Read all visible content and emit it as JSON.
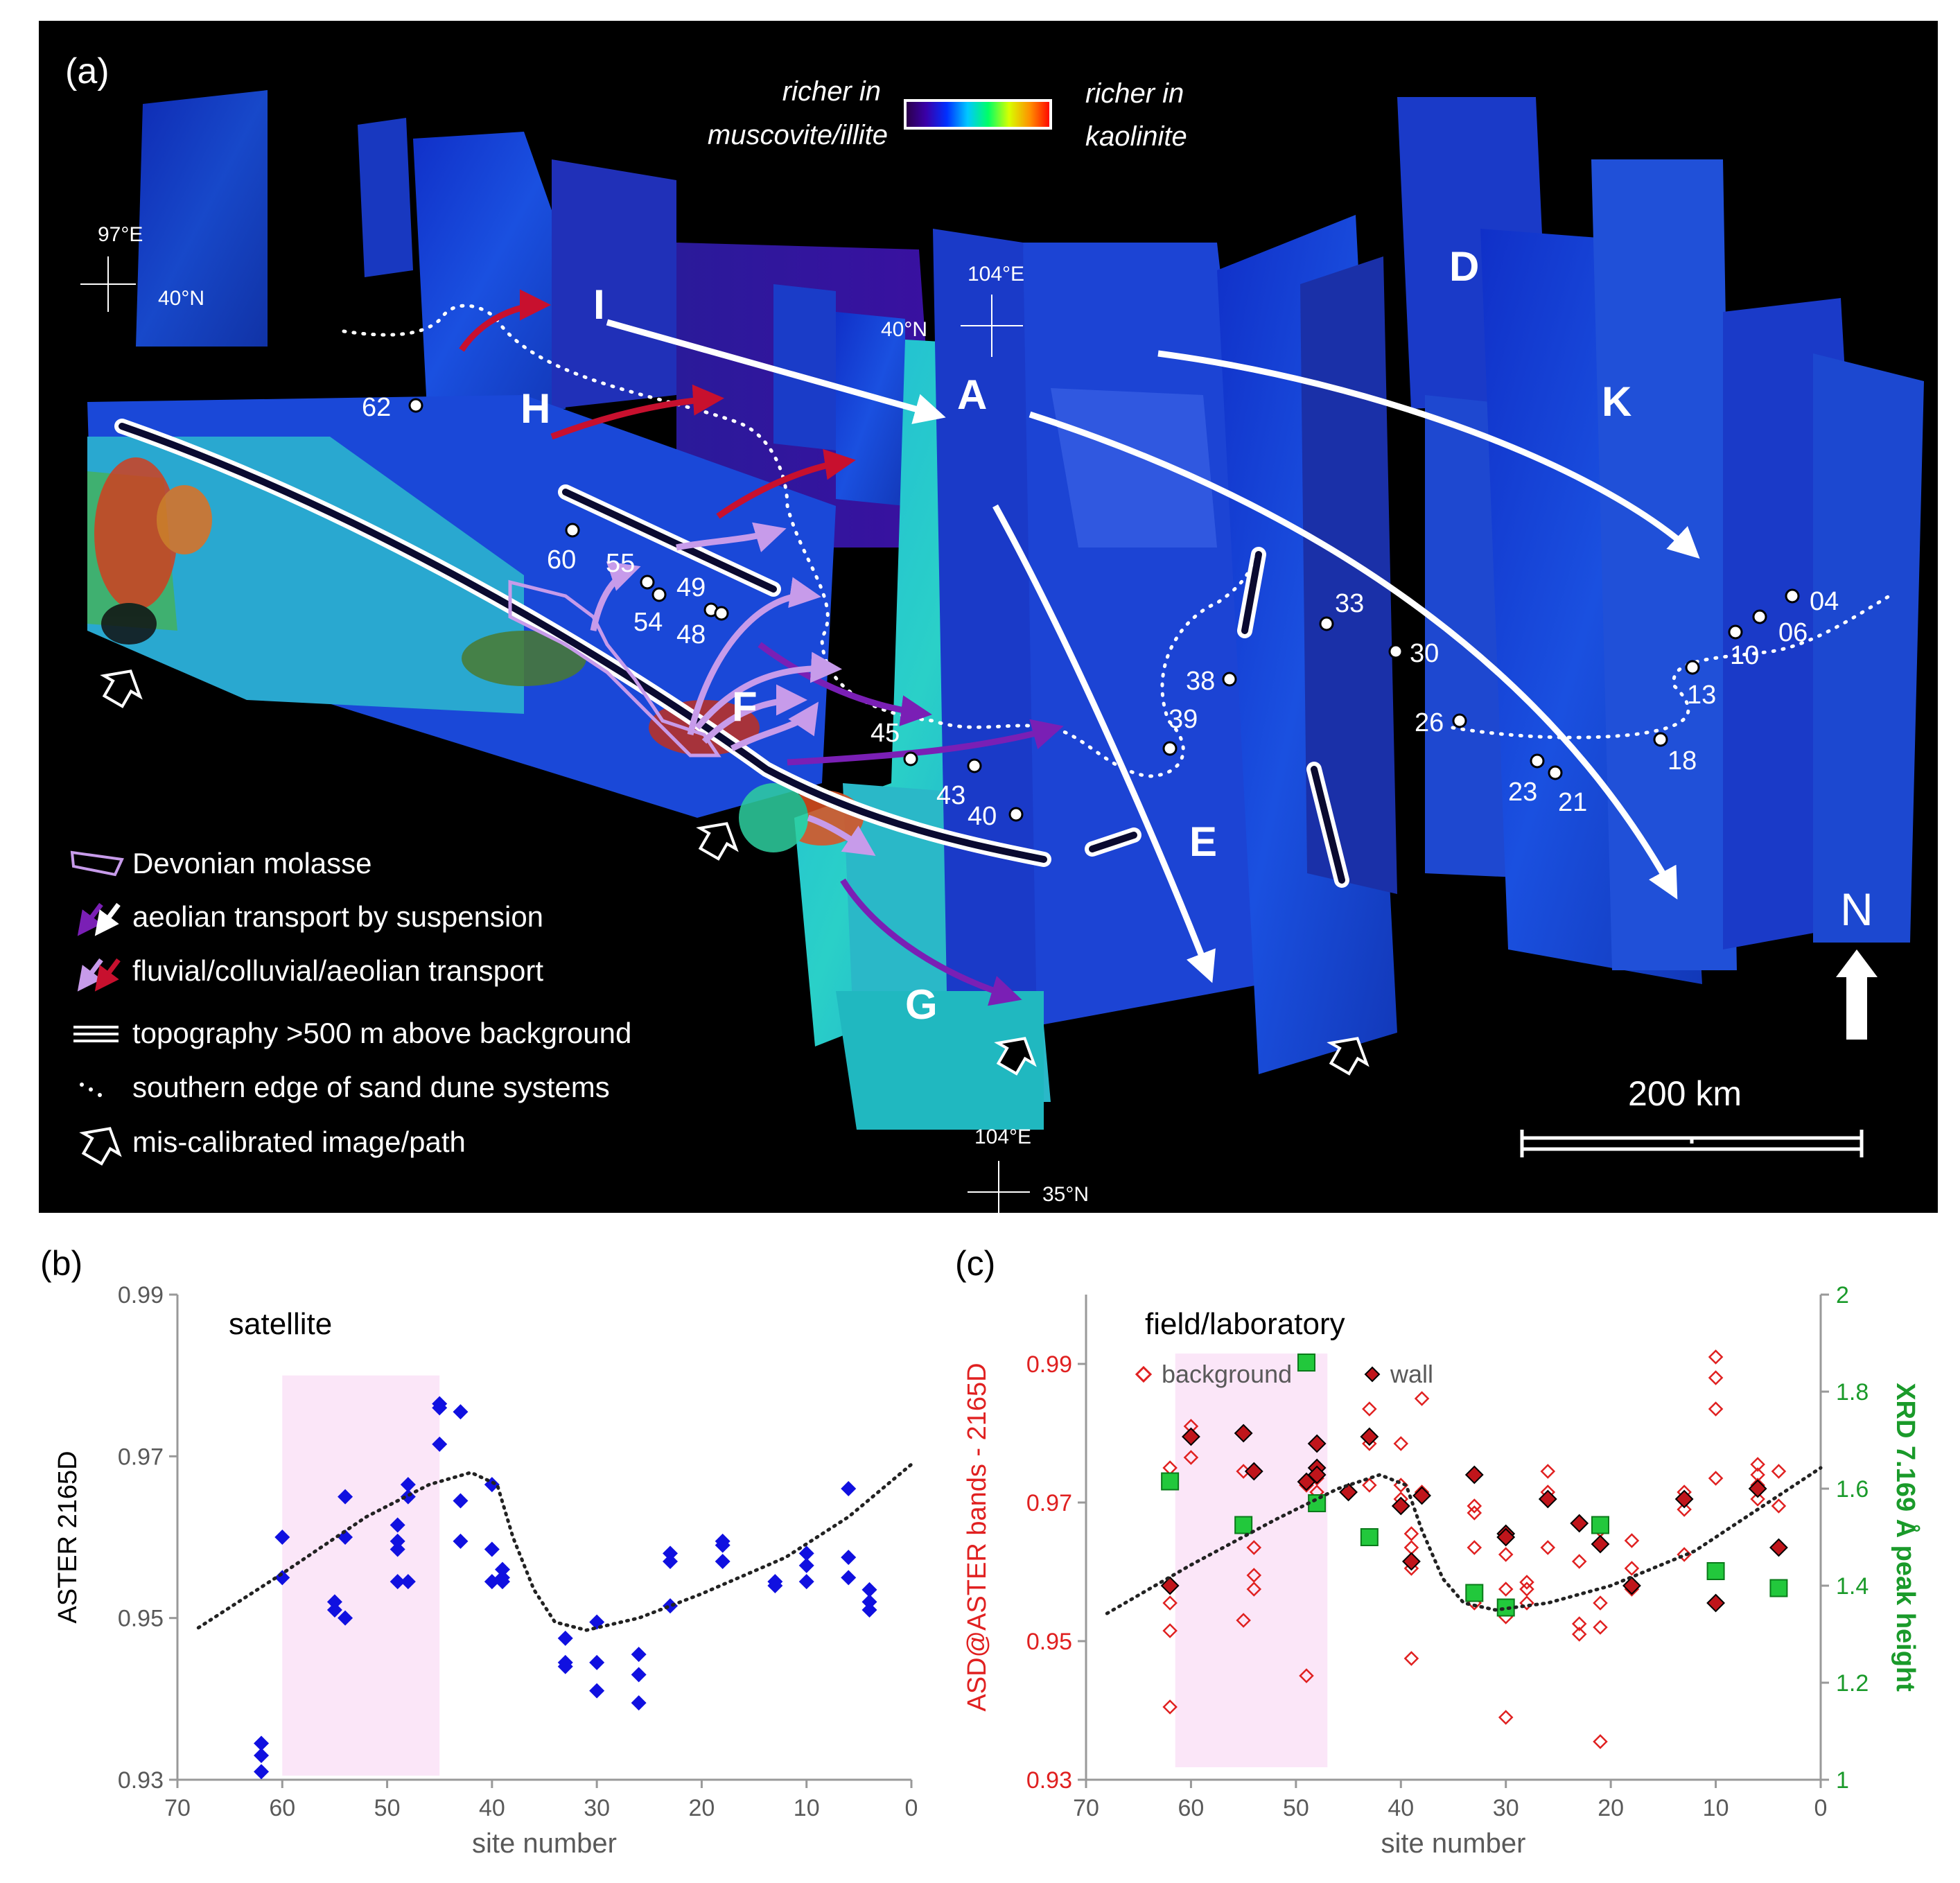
{
  "panel_a": {
    "label": "(a)",
    "colorbar": {
      "left_label_line1": "richer in",
      "left_label_line2": "muscovite/illite",
      "right_label_line1": "richer in",
      "right_label_line2": "kaolinite",
      "gradient": [
        "#2a0044",
        "#3a00a8",
        "#0030ff",
        "#00c8ff",
        "#00ff66",
        "#d8ff00",
        "#ff9000",
        "#ff0000"
      ]
    },
    "coord_marks": [
      {
        "lon": "97°E",
        "lat": "40°N"
      },
      {
        "lon": "104°E",
        "lat": "40°N"
      },
      {
        "lon": "104°E",
        "lat": "35°N"
      }
    ],
    "region_letters": [
      "I",
      "H",
      "A",
      "D",
      "K",
      "F",
      "E",
      "G"
    ],
    "sites": [
      "62",
      "60",
      "55",
      "54",
      "49",
      "48",
      "45",
      "43",
      "40",
      "39",
      "38",
      "33",
      "30",
      "26",
      "23",
      "21",
      "18",
      "13",
      "10",
      "06",
      "04"
    ],
    "legend": [
      {
        "icon": "molasse-polygon-icon",
        "text": "Devonian molasse"
      },
      {
        "icon": "suspension-arrows-icon",
        "text": "aeolian transport by suspension"
      },
      {
        "icon": "fluvial-arrows-icon",
        "text": "fluvial/colluvial/aeolian transport"
      },
      {
        "icon": "topography-lines-icon",
        "text": "topography >500 m above background"
      },
      {
        "icon": "dotted-edge-icon",
        "text": "southern edge of sand dune systems"
      },
      {
        "icon": "outline-arrow-icon",
        "text": "mis-calibrated image/path"
      }
    ],
    "north": "N",
    "scale": "200 km",
    "colors": {
      "background": "#000000",
      "white_arrow": "#ffffff",
      "red_arrow": "#c8102e",
      "purple_arrow": "#7a1fb5",
      "lilac_arrow": "#c79bea"
    }
  },
  "chart_data": [
    {
      "panel": "(b)",
      "type": "scatter",
      "title": "satellite",
      "xlabel": "site number",
      "ylabel": "ASTER 2165D",
      "xlim": [
        70,
        0
      ],
      "ylim": [
        0.93,
        0.99
      ],
      "xticks": [
        "70",
        "60",
        "50",
        "40",
        "30",
        "20",
        "10",
        "0"
      ],
      "yticks": [
        "0.93",
        "0.95",
        "0.97",
        "0.99"
      ],
      "shaded_range": {
        "x": [
          60,
          45
        ],
        "y": [
          0.9305,
          0.98
        ]
      },
      "marker_color": "#1010e0",
      "series": [
        {
          "name": "satellite",
          "points": [
            [
              62,
              0.9345
            ],
            [
              62,
              0.933
            ],
            [
              62,
              0.931
            ],
            [
              60,
              0.96
            ],
            [
              60,
              0.955
            ],
            [
              55,
              0.952
            ],
            [
              55,
              0.951
            ],
            [
              54,
              0.965
            ],
            [
              54,
              0.96
            ],
            [
              54,
              0.95
            ],
            [
              49,
              0.9615
            ],
            [
              49,
              0.9595
            ],
            [
              49,
              0.9585
            ],
            [
              49,
              0.9545
            ],
            [
              48,
              0.9665
            ],
            [
              48,
              0.965
            ],
            [
              48,
              0.9545
            ],
            [
              45,
              0.9765
            ],
            [
              45,
              0.976
            ],
            [
              45,
              0.9715
            ],
            [
              43,
              0.9755
            ],
            [
              43,
              0.9645
            ],
            [
              43,
              0.9595
            ],
            [
              40,
              0.9665
            ],
            [
              40,
              0.9585
            ],
            [
              40,
              0.9545
            ],
            [
              39,
              0.956
            ],
            [
              39,
              0.955
            ],
            [
              39,
              0.9545
            ],
            [
              33,
              0.9475
            ],
            [
              33,
              0.9445
            ],
            [
              33,
              0.944
            ],
            [
              30,
              0.9495
            ],
            [
              30,
              0.9445
            ],
            [
              30,
              0.941
            ],
            [
              26,
              0.9455
            ],
            [
              26,
              0.943
            ],
            [
              26,
              0.9395
            ],
            [
              23,
              0.958
            ],
            [
              23,
              0.957
            ],
            [
              23,
              0.9515
            ],
            [
              18,
              0.9595
            ],
            [
              18,
              0.959
            ],
            [
              18,
              0.957
            ],
            [
              13,
              0.9545
            ],
            [
              13,
              0.954
            ],
            [
              10,
              0.958
            ],
            [
              10,
              0.9565
            ],
            [
              10,
              0.9545
            ],
            [
              6,
              0.966
            ],
            [
              6,
              0.9575
            ],
            [
              6,
              0.955
            ],
            [
              4,
              0.9535
            ],
            [
              4,
              0.952
            ],
            [
              4,
              0.951
            ]
          ]
        },
        {
          "name": "trend",
          "line": [
            [
              68,
              0.9488
            ],
            [
              60,
              0.9555
            ],
            [
              52,
              0.9625
            ],
            [
              46,
              0.9665
            ],
            [
              42,
              0.968
            ],
            [
              39.5,
              0.9665
            ],
            [
              38,
              0.96
            ],
            [
              36,
              0.9535
            ],
            [
              34,
              0.9495
            ],
            [
              31,
              0.9485
            ],
            [
              26,
              0.95
            ],
            [
              20,
              0.953
            ],
            [
              12,
              0.9575
            ],
            [
              6,
              0.9625
            ],
            [
              0,
              0.969
            ]
          ]
        }
      ]
    },
    {
      "panel": "(c)",
      "type": "scatter",
      "title": "field/laboratory",
      "xlabel": "site number",
      "ylabel": "ASD@ASTER bands - 2165D",
      "y2label": "XRD 7.169 Å peak height",
      "xlim": [
        70,
        0
      ],
      "ylim": [
        0.93,
        1.0
      ],
      "y2lim": [
        1,
        2
      ],
      "xticks": [
        "70",
        "60",
        "50",
        "40",
        "30",
        "20",
        "10",
        "0"
      ],
      "yticks": [
        "0.93",
        "0.95",
        "0.97",
        "0.99"
      ],
      "y2ticks": [
        "1",
        "1.2",
        "1.4",
        "1.6",
        "1.8",
        "2"
      ],
      "shaded_range": {
        "x": [
          61.5,
          47
        ],
        "y": [
          0.9318,
          0.9915
        ]
      },
      "legend": [
        "background",
        "wall"
      ],
      "series": [
        {
          "name": "background",
          "marker": "open-diamond",
          "color": "#e02020",
          "points": [
            [
              62,
              0.975
            ],
            [
              62,
              0.9555
            ],
            [
              62,
              0.9515
            ],
            [
              62,
              0.9405
            ],
            [
              60,
              0.981
            ],
            [
              60,
              0.9765
            ],
            [
              55,
              0.9745
            ],
            [
              55,
              0.953
            ],
            [
              54,
              0.9745
            ],
            [
              54,
              0.9635
            ],
            [
              54,
              0.9595
            ],
            [
              54,
              0.9575
            ],
            [
              49,
              0.9725
            ],
            [
              49,
              0.945
            ],
            [
              48,
              0.9735
            ],
            [
              48,
              0.9715
            ],
            [
              43,
              0.9835
            ],
            [
              43,
              0.9785
            ],
            [
              43,
              0.9725
            ],
            [
              40,
              0.9785
            ],
            [
              40,
              0.9725
            ],
            [
              40,
              0.9705
            ],
            [
              39,
              0.9655
            ],
            [
              39,
              0.9635
            ],
            [
              39,
              0.9605
            ],
            [
              39,
              0.9475
            ],
            [
              38,
              0.985
            ],
            [
              38,
              0.9715
            ],
            [
              33,
              0.9695
            ],
            [
              33,
              0.9685
            ],
            [
              33,
              0.9635
            ],
            [
              33,
              0.9555
            ],
            [
              30,
              0.9625
            ],
            [
              30,
              0.9575
            ],
            [
              30,
              0.9535
            ],
            [
              30,
              0.939
            ],
            [
              28,
              0.9585
            ],
            [
              28,
              0.9575
            ],
            [
              28,
              0.9555
            ],
            [
              26,
              0.9745
            ],
            [
              26,
              0.9715
            ],
            [
              26,
              0.9635
            ],
            [
              23,
              0.9615
            ],
            [
              23,
              0.9525
            ],
            [
              23,
              0.951
            ],
            [
              21,
              0.966
            ],
            [
              21,
              0.9555
            ],
            [
              21,
              0.952
            ],
            [
              21,
              0.9355
            ],
            [
              18,
              0.9645
            ],
            [
              18,
              0.9605
            ],
            [
              18,
              0.9575
            ],
            [
              13,
              0.9715
            ],
            [
              13,
              0.969
            ],
            [
              13,
              0.9625
            ],
            [
              10,
              0.991
            ],
            [
              10,
              0.988
            ],
            [
              10,
              0.9835
            ],
            [
              10,
              0.9735
            ],
            [
              6,
              0.9755
            ],
            [
              6,
              0.974
            ],
            [
              6,
              0.9725
            ],
            [
              6,
              0.9705
            ],
            [
              4,
              0.9745
            ],
            [
              4,
              0.9695
            ]
          ]
        },
        {
          "name": "wall",
          "marker": "filled-diamond",
          "color": "#c0151b",
          "points": [
            [
              62,
              0.958
            ],
            [
              60,
              0.9795
            ],
            [
              55,
              0.98
            ],
            [
              54,
              0.9745
            ],
            [
              49,
              0.973
            ],
            [
              48,
              0.9785
            ],
            [
              48,
              0.975
            ],
            [
              48,
              0.974
            ],
            [
              45,
              0.9715
            ],
            [
              43,
              0.9795
            ],
            [
              40,
              0.9695
            ],
            [
              39,
              0.9615
            ],
            [
              38,
              0.971
            ],
            [
              33,
              0.974
            ],
            [
              30,
              0.9655
            ],
            [
              30,
              0.965
            ],
            [
              26,
              0.9705
            ],
            [
              23,
              0.967
            ],
            [
              21,
              0.964
            ],
            [
              18,
              0.958
            ],
            [
              13,
              0.9705
            ],
            [
              10,
              0.9555
            ],
            [
              6,
              0.972
            ],
            [
              4,
              0.9635
            ]
          ]
        },
        {
          "name": "XRD 7.169 Å peak height",
          "marker": "square",
          "color": "#22c83c",
          "axis": "right",
          "points": [
            [
              62,
              1.615
            ],
            [
              55,
              1.525
            ],
            [
              48,
              1.57
            ],
            [
              49,
              1.86
            ],
            [
              43,
              1.5
            ],
            [
              33,
              1.385
            ],
            [
              30,
              1.355
            ],
            [
              21,
              1.525
            ],
            [
              10,
              1.43
            ],
            [
              4,
              1.395
            ]
          ]
        },
        {
          "name": "trend",
          "line": [
            [
              68,
              0.954
            ],
            [
              60,
              0.961
            ],
            [
              52,
              0.9675
            ],
            [
              46,
              0.972
            ],
            [
              42,
              0.974
            ],
            [
              39.5,
              0.9725
            ],
            [
              38,
              0.966
            ],
            [
              36,
              0.959
            ],
            [
              34,
              0.9555
            ],
            [
              31,
              0.9545
            ],
            [
              26,
              0.9555
            ],
            [
              20,
              0.958
            ],
            [
              12,
              0.963
            ],
            [
              6,
              0.969
            ],
            [
              0,
              0.975
            ]
          ]
        }
      ]
    }
  ]
}
